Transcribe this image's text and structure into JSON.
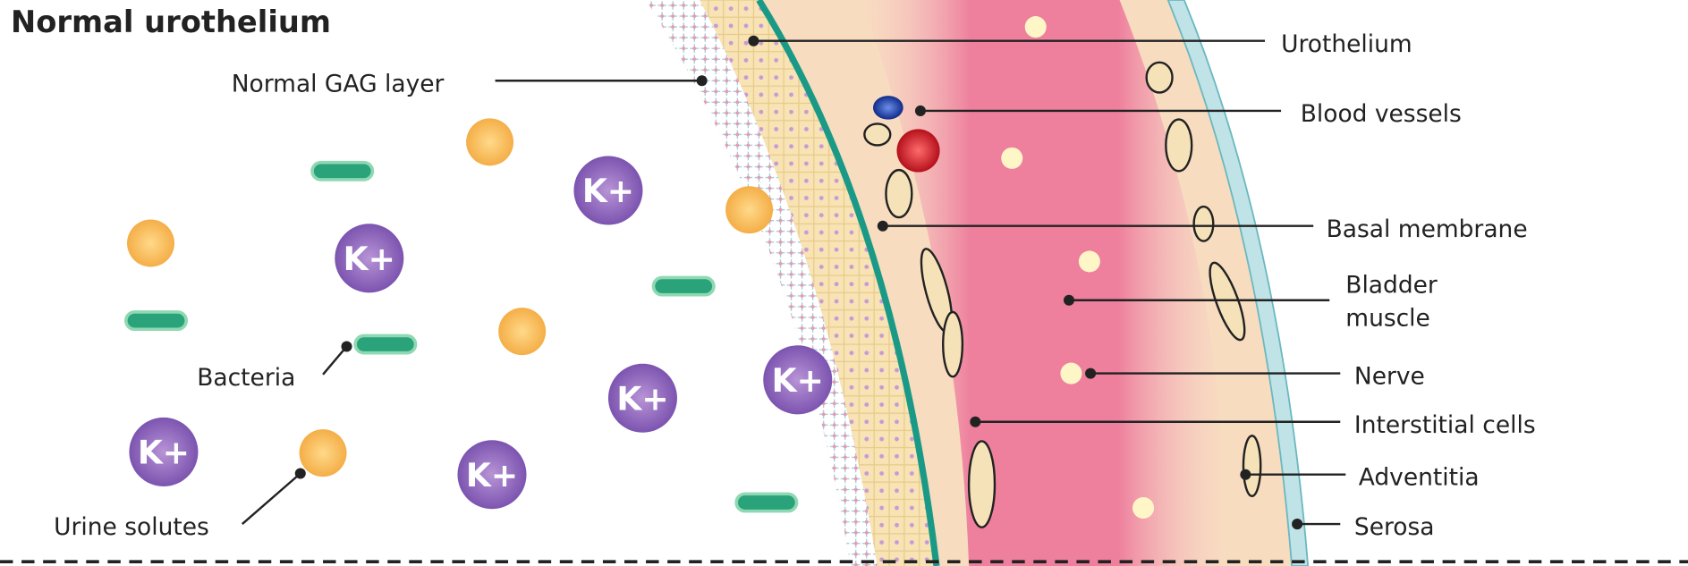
{
  "title": "Normal urothelium",
  "ion_label": "K+",
  "labels": {
    "gag": "Normal GAG layer",
    "bacteria": "Bacteria",
    "urine_solutes": "Urine solutes",
    "urothelium": "Urothelium",
    "blood_vessels": "Blood vessels",
    "basal_membrane": "Basal membrane",
    "bladder_muscle": [
      "Bladder",
      "muscle"
    ],
    "nerve": "Nerve",
    "interstitial_cells": "Interstitial cells",
    "adventitia": "Adventitia",
    "serosa": "Serosa"
  }
}
